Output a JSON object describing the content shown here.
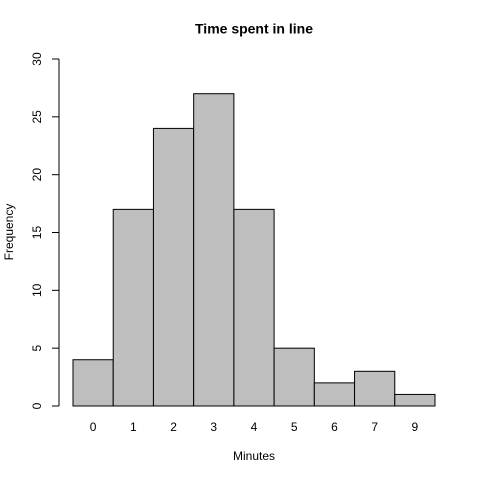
{
  "chart_data": {
    "type": "bar",
    "title": "Time spent in line",
    "x_label": "Minutes",
    "y_label": "Frequency",
    "categories": [
      "0",
      "1",
      "2",
      "3",
      "4",
      "5",
      "6",
      "7",
      "9"
    ],
    "values": [
      4,
      17,
      24,
      27,
      17,
      5,
      2,
      3,
      1
    ],
    "color": "#bebebe",
    "ylim": [
      0,
      30
    ],
    "yticks": [
      0,
      5,
      10,
      15,
      20,
      25,
      30
    ]
  }
}
